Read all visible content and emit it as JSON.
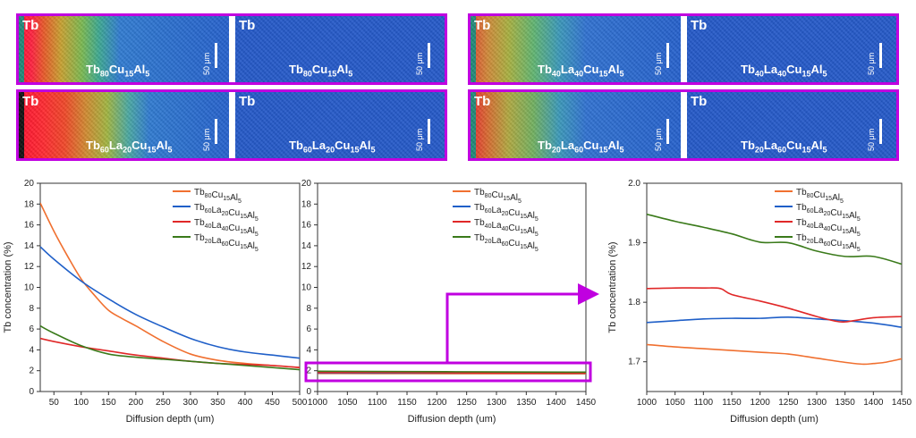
{
  "maps": [
    {
      "tag_left": "Tb",
      "tag_right": "Tb",
      "scale": "50 μm",
      "alloy": [
        [
          "Tb",
          "80"
        ],
        [
          "Cu",
          "15"
        ],
        [
          "Al",
          "5"
        ]
      ],
      "gradient": "tb80"
    },
    {
      "tag_left": "Tb",
      "tag_right": "Tb",
      "scale": "50 μm",
      "alloy": [
        [
          "Tb",
          "40"
        ],
        [
          "La",
          "40"
        ],
        [
          "Cu",
          "15"
        ],
        [
          "Al",
          "5"
        ]
      ],
      "gradient": "tb40"
    },
    {
      "tag_left": "Tb",
      "tag_right": "Tb",
      "scale": "50 μm",
      "alloy": [
        [
          "Tb",
          "60"
        ],
        [
          "La",
          "20"
        ],
        [
          "Cu",
          "15"
        ],
        [
          "Al",
          "5"
        ]
      ],
      "gradient": "tb60"
    },
    {
      "tag_left": "Tb",
      "tag_right": "Tb",
      "scale": "50 μm",
      "alloy": [
        [
          "Tb",
          "20"
        ],
        [
          "La",
          "60"
        ],
        [
          "Cu",
          "15"
        ],
        [
          "Al",
          "5"
        ]
      ],
      "gradient": "tb20"
    }
  ],
  "series_meta": [
    {
      "parts": [
        [
          "Tb",
          "80"
        ],
        [
          "Cu",
          "15"
        ],
        [
          "Al",
          "5"
        ]
      ],
      "color": "#f07030"
    },
    {
      "parts": [
        [
          "Tb",
          "60"
        ],
        [
          "La",
          "20"
        ],
        [
          "Cu",
          "15"
        ],
        [
          "Al",
          "5"
        ]
      ],
      "color": "#1f5fc8"
    },
    {
      "parts": [
        [
          "Tb",
          "40"
        ],
        [
          "La",
          "40"
        ],
        [
          "Cu",
          "15"
        ],
        [
          "Al",
          "5"
        ]
      ],
      "color": "#e02828"
    },
    {
      "parts": [
        [
          "Tb",
          "20"
        ],
        [
          "La",
          "60"
        ],
        [
          "Cu",
          "15"
        ],
        [
          "Al",
          "5"
        ]
      ],
      "color": "#3a7a1a"
    }
  ],
  "highlight_color": "#c000e0",
  "chart_data": [
    {
      "type": "line",
      "xlabel": "Diffusion depth (um)",
      "ylabel": "Tb concentration (%)",
      "xlim": [
        25,
        500
      ],
      "ylim": [
        0,
        20
      ],
      "xticks": [
        50,
        100,
        150,
        200,
        250,
        300,
        350,
        400,
        450,
        500
      ],
      "yticks": [
        0,
        2,
        4,
        6,
        8,
        10,
        12,
        14,
        16,
        18,
        20
      ],
      "series": [
        {
          "x": [
            25,
            50,
            75,
            100,
            125,
            150,
            175,
            200,
            250,
            300,
            350,
            400,
            450,
            500
          ],
          "values": [
            18.1,
            15.4,
            13.0,
            10.8,
            9.2,
            7.8,
            7.0,
            6.3,
            4.8,
            3.6,
            3.0,
            2.7,
            2.5,
            2.3
          ]
        },
        {
          "x": [
            25,
            50,
            100,
            150,
            200,
            250,
            300,
            350,
            400,
            450,
            500
          ],
          "values": [
            13.9,
            12.7,
            10.6,
            8.9,
            7.4,
            6.2,
            5.1,
            4.3,
            3.8,
            3.5,
            3.2
          ]
        },
        {
          "x": [
            25,
            50,
            100,
            150,
            200,
            250,
            300,
            350,
            400,
            450,
            500
          ],
          "values": [
            5.1,
            4.8,
            4.3,
            3.9,
            3.5,
            3.2,
            2.9,
            2.7,
            2.6,
            2.5,
            2.3
          ]
        },
        {
          "x": [
            25,
            50,
            100,
            150,
            200,
            250,
            300,
            350,
            400,
            450,
            500
          ],
          "values": [
            6.3,
            5.6,
            4.4,
            3.6,
            3.3,
            3.1,
            2.9,
            2.7,
            2.5,
            2.3,
            2.1
          ]
        }
      ]
    },
    {
      "type": "line",
      "xlabel": "Diffusion depth (um)",
      "ylabel": "",
      "xlim": [
        1000,
        1450
      ],
      "ylim": [
        0,
        20
      ],
      "xticks": [
        1000,
        1050,
        1100,
        1150,
        1200,
        1250,
        1300,
        1350,
        1400,
        1450
      ],
      "yticks": [
        0,
        2,
        4,
        6,
        8,
        10,
        12,
        14,
        16,
        18,
        20
      ],
      "series": [
        {
          "x": [
            1000,
            1150,
            1300,
            1450
          ],
          "values": [
            1.73,
            1.72,
            1.71,
            1.7
          ]
        },
        {
          "x": [
            1000,
            1150,
            1300,
            1450
          ],
          "values": [
            1.77,
            1.77,
            1.77,
            1.76
          ]
        },
        {
          "x": [
            1000,
            1150,
            1300,
            1450
          ],
          "values": [
            1.82,
            1.82,
            1.77,
            1.77
          ]
        },
        {
          "x": [
            1000,
            1150,
            1300,
            1450
          ],
          "values": [
            1.95,
            1.92,
            1.88,
            1.86
          ]
        }
      ]
    },
    {
      "type": "line",
      "xlabel": "Diffusion depth (um)",
      "ylabel": "Tb concentration (%)",
      "xlim": [
        1000,
        1450
      ],
      "ylim": [
        1.65,
        2.0
      ],
      "xticks": [
        1000,
        1050,
        1100,
        1150,
        1200,
        1250,
        1300,
        1350,
        1400,
        1450
      ],
      "yticks": [
        1.7,
        1.8,
        1.9,
        2.0
      ],
      "ytick_labels": [
        "1.7",
        "1.8",
        "1.9",
        "2.0"
      ],
      "series": [
        {
          "x": [
            1000,
            1050,
            1100,
            1150,
            1200,
            1250,
            1300,
            1350,
            1380,
            1400,
            1420,
            1450
          ],
          "values": [
            1.729,
            1.725,
            1.722,
            1.719,
            1.716,
            1.713,
            1.706,
            1.699,
            1.696,
            1.697,
            1.699,
            1.705
          ]
        },
        {
          "x": [
            1000,
            1050,
            1100,
            1150,
            1200,
            1250,
            1300,
            1350,
            1400,
            1450
          ],
          "values": [
            1.766,
            1.769,
            1.772,
            1.773,
            1.773,
            1.775,
            1.772,
            1.769,
            1.765,
            1.758
          ]
        },
        {
          "x": [
            1000,
            1050,
            1100,
            1130,
            1150,
            1200,
            1250,
            1300,
            1330,
            1350,
            1400,
            1450
          ],
          "values": [
            1.823,
            1.824,
            1.824,
            1.823,
            1.813,
            1.802,
            1.79,
            1.776,
            1.769,
            1.767,
            1.774,
            1.776
          ]
        },
        {
          "x": [
            1000,
            1050,
            1100,
            1150,
            1200,
            1250,
            1300,
            1350,
            1400,
            1450
          ],
          "values": [
            1.948,
            1.936,
            1.926,
            1.915,
            1.901,
            1.9,
            1.886,
            1.877,
            1.877,
            1.864
          ]
        }
      ]
    }
  ]
}
